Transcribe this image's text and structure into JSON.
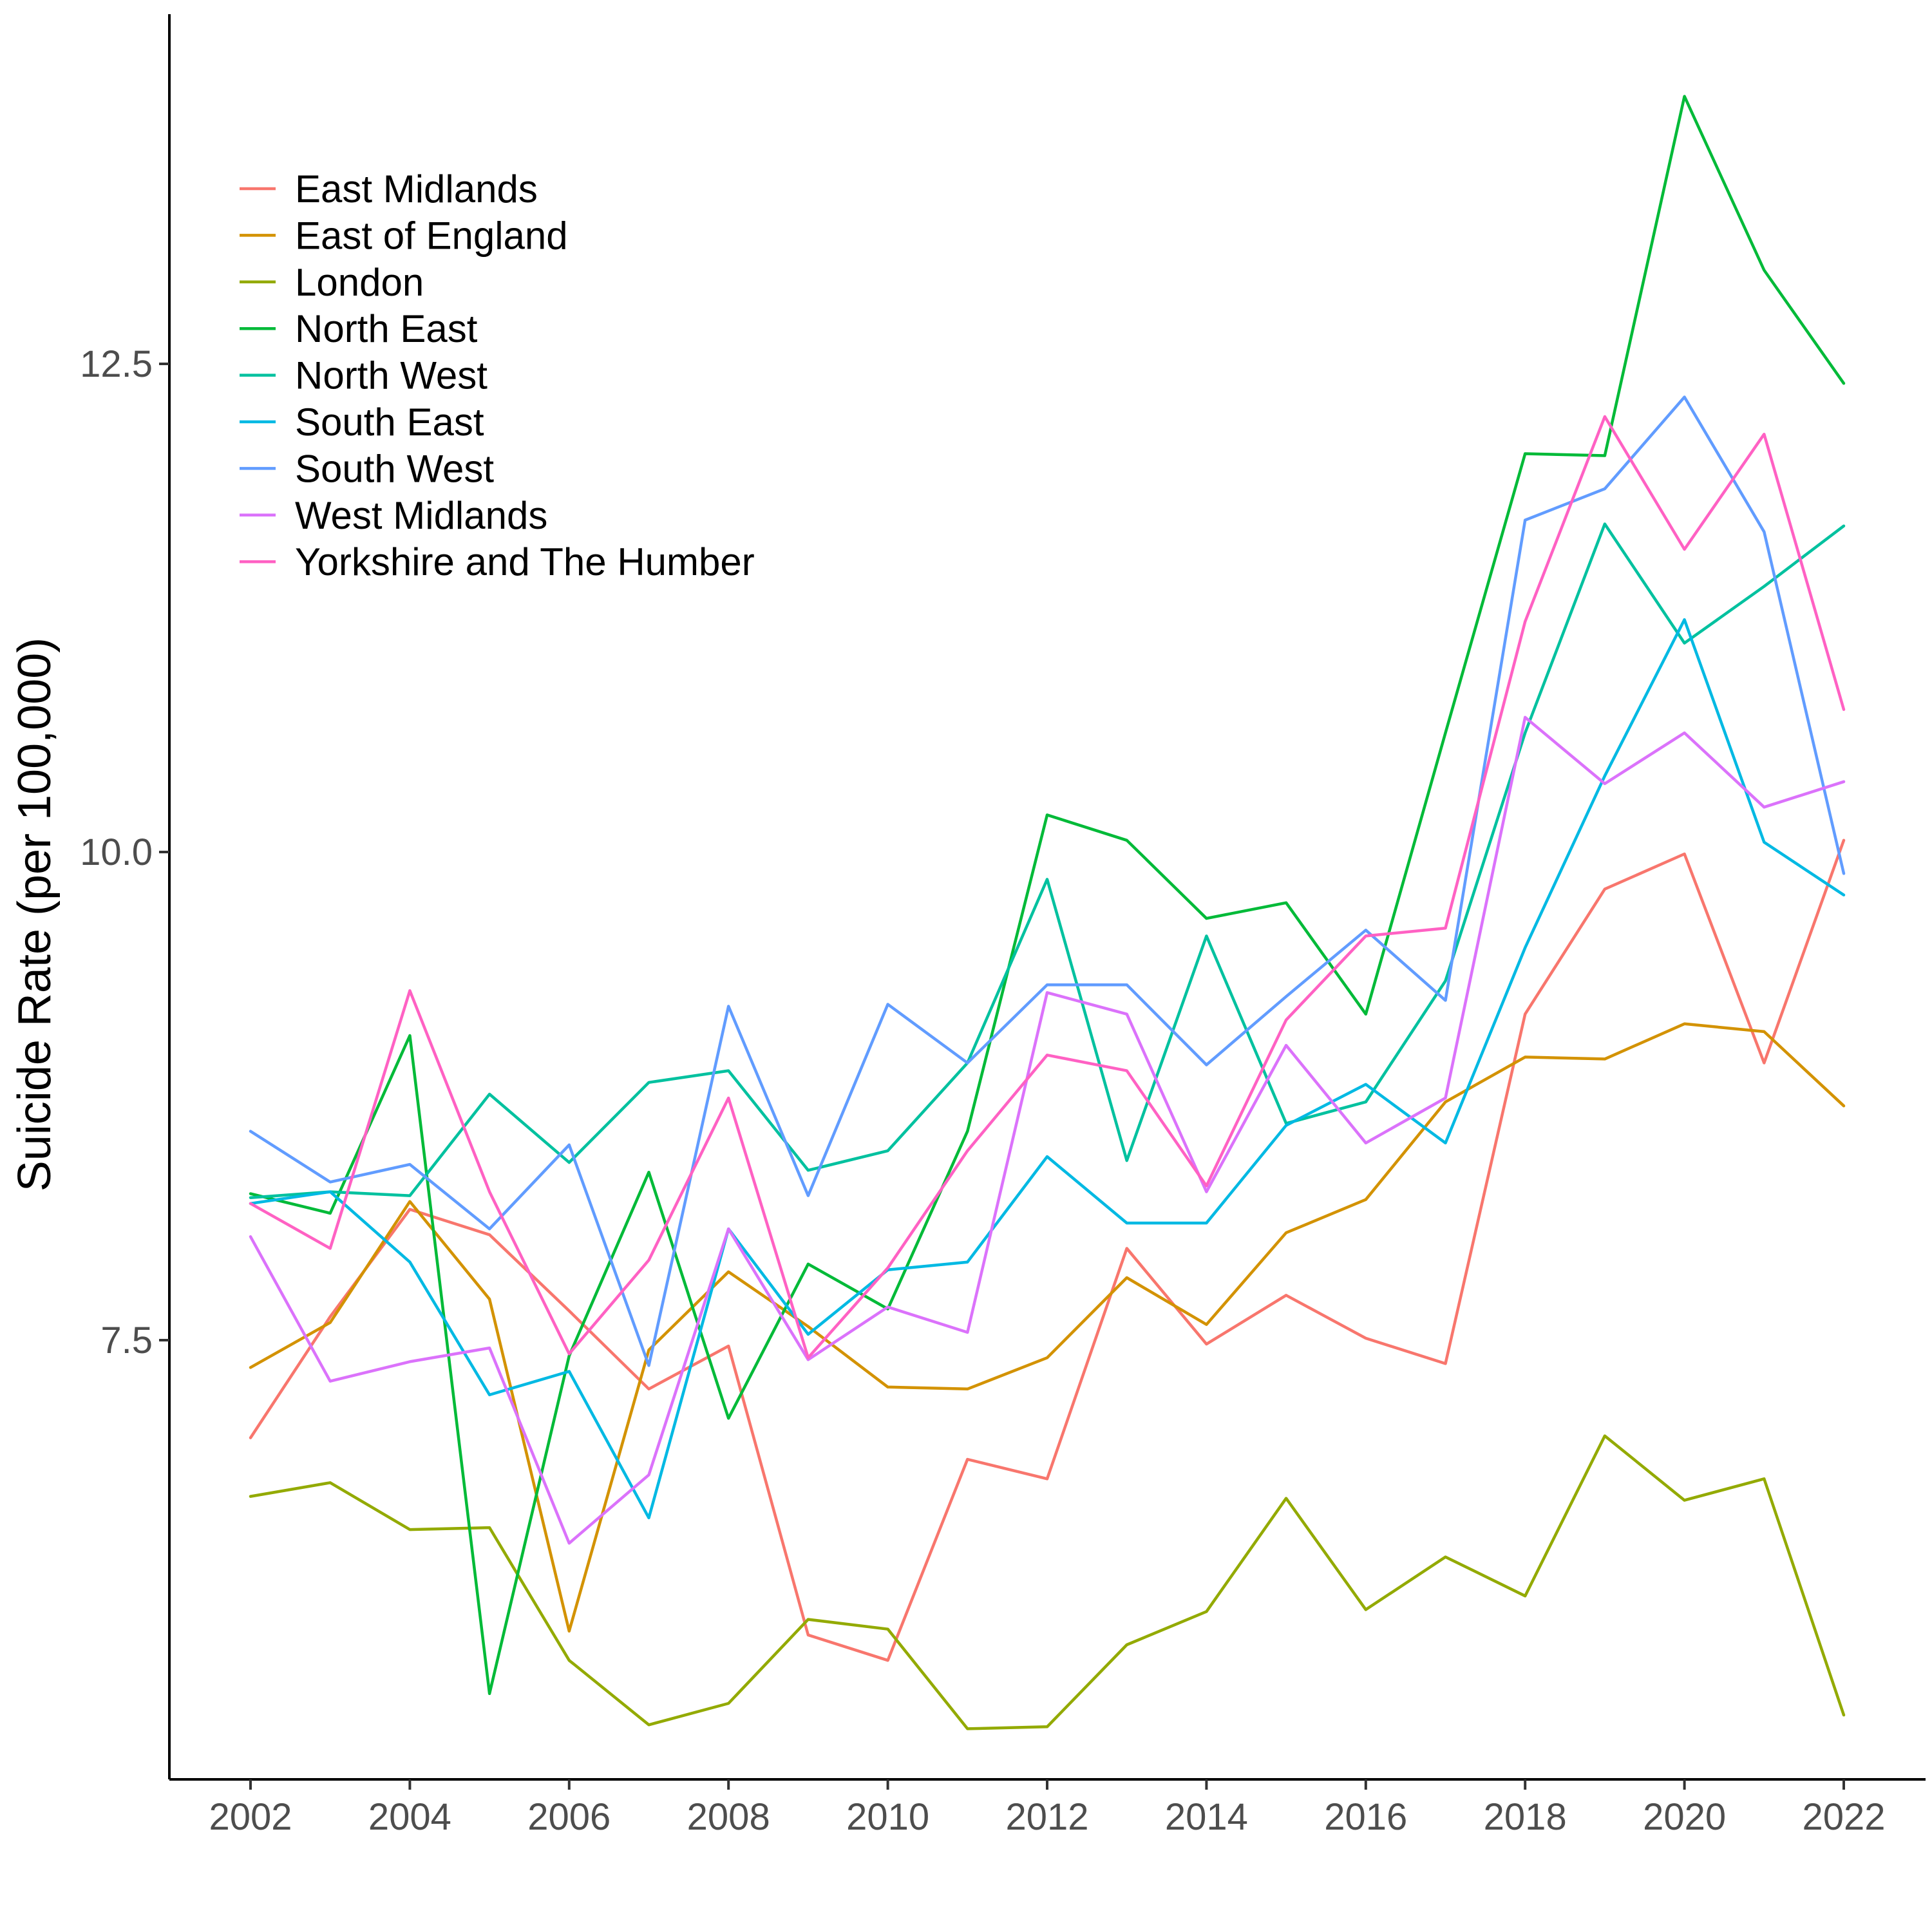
{
  "chart_data": {
    "type": "line",
    "title": "",
    "xlabel": "",
    "ylabel": "Suicide Rate (per 100,000)",
    "x": [
      2002,
      2003,
      2004,
      2005,
      2006,
      2007,
      2008,
      2009,
      2010,
      2011,
      2012,
      2013,
      2014,
      2015,
      2016,
      2017,
      2018,
      2019,
      2020,
      2021,
      2022
    ],
    "x_ticks": [
      "2002",
      "2004",
      "2006",
      "2008",
      "2010",
      "2012",
      "2014",
      "2016",
      "2018",
      "2020",
      "2022"
    ],
    "y_ticks": [
      "7.5",
      "10.0",
      "12.5"
    ],
    "xlim": [
      2001,
      2023
    ],
    "ylim": [
      5.25,
      13.8
    ],
    "grid": false,
    "legend_position": "top-left",
    "series": [
      {
        "name": "East Midlands",
        "color": "#F8766D",
        "values": [
          7.0,
          7.62,
          8.17,
          8.04,
          7.65,
          7.25,
          7.47,
          5.99,
          5.86,
          6.89,
          6.79,
          7.97,
          7.48,
          7.73,
          7.51,
          7.38,
          9.17,
          9.81,
          9.99,
          8.92,
          10.06
        ]
      },
      {
        "name": "East of England",
        "color": "#D39200",
        "values": [
          7.36,
          7.59,
          8.21,
          7.71,
          6.01,
          7.45,
          7.85,
          7.57,
          7.26,
          7.25,
          7.41,
          7.82,
          7.58,
          8.05,
          8.22,
          8.72,
          8.95,
          8.94,
          9.12,
          9.08,
          8.7
        ]
      },
      {
        "name": "London",
        "color": "#93AA00",
        "values": [
          6.7,
          6.77,
          6.53,
          6.54,
          5.86,
          5.53,
          5.64,
          6.07,
          6.02,
          5.51,
          5.52,
          5.94,
          6.11,
          6.69,
          6.12,
          6.39,
          6.19,
          7.01,
          6.68,
          6.79,
          5.58
        ]
      },
      {
        "name": "North East",
        "color": "#00BA38",
        "values": [
          8.25,
          8.15,
          9.06,
          5.69,
          7.42,
          8.36,
          7.1,
          7.89,
          7.66,
          8.57,
          10.19,
          10.06,
          9.66,
          9.74,
          9.17,
          10.61,
          12.04,
          12.03,
          13.87,
          12.98,
          12.4
        ]
      },
      {
        "name": "North West",
        "color": "#00C19F",
        "values": [
          8.23,
          8.26,
          8.24,
          8.76,
          8.41,
          8.82,
          8.88,
          8.37,
          8.47,
          8.92,
          9.86,
          8.42,
          9.57,
          8.61,
          8.72,
          9.34,
          10.61,
          11.68,
          11.07,
          11.36,
          11.67
        ]
      },
      {
        "name": "South East",
        "color": "#00B9E3",
        "values": [
          8.2,
          8.26,
          7.9,
          7.22,
          7.34,
          6.59,
          8.07,
          7.53,
          7.86,
          7.9,
          8.44,
          8.1,
          8.1,
          8.6,
          8.81,
          8.51,
          9.51,
          10.39,
          11.19,
          10.05,
          9.78
        ]
      },
      {
        "name": "South West",
        "color": "#619CFF",
        "values": [
          8.57,
          8.31,
          8.4,
          8.07,
          8.5,
          7.37,
          9.21,
          8.24,
          9.22,
          8.92,
          9.32,
          9.32,
          8.91,
          9.26,
          9.6,
          9.24,
          11.7,
          11.86,
          12.33,
          11.64,
          9.89
        ]
      },
      {
        "name": "West Midlands",
        "color": "#DB72FB",
        "values": [
          8.03,
          7.29,
          7.39,
          7.46,
          6.46,
          6.81,
          8.07,
          7.4,
          7.67,
          7.54,
          9.28,
          9.17,
          8.26,
          9.01,
          8.51,
          8.74,
          10.69,
          10.35,
          10.61,
          10.23,
          10.36
        ]
      },
      {
        "name": "Yorkshire and The Humber",
        "color": "#FF61C3",
        "values": [
          8.2,
          7.97,
          9.29,
          8.26,
          7.43,
          7.91,
          8.74,
          7.41,
          7.87,
          8.47,
          8.96,
          8.88,
          8.29,
          9.14,
          9.57,
          9.61,
          11.18,
          12.23,
          11.55,
          12.14,
          10.73
        ]
      }
    ]
  }
}
